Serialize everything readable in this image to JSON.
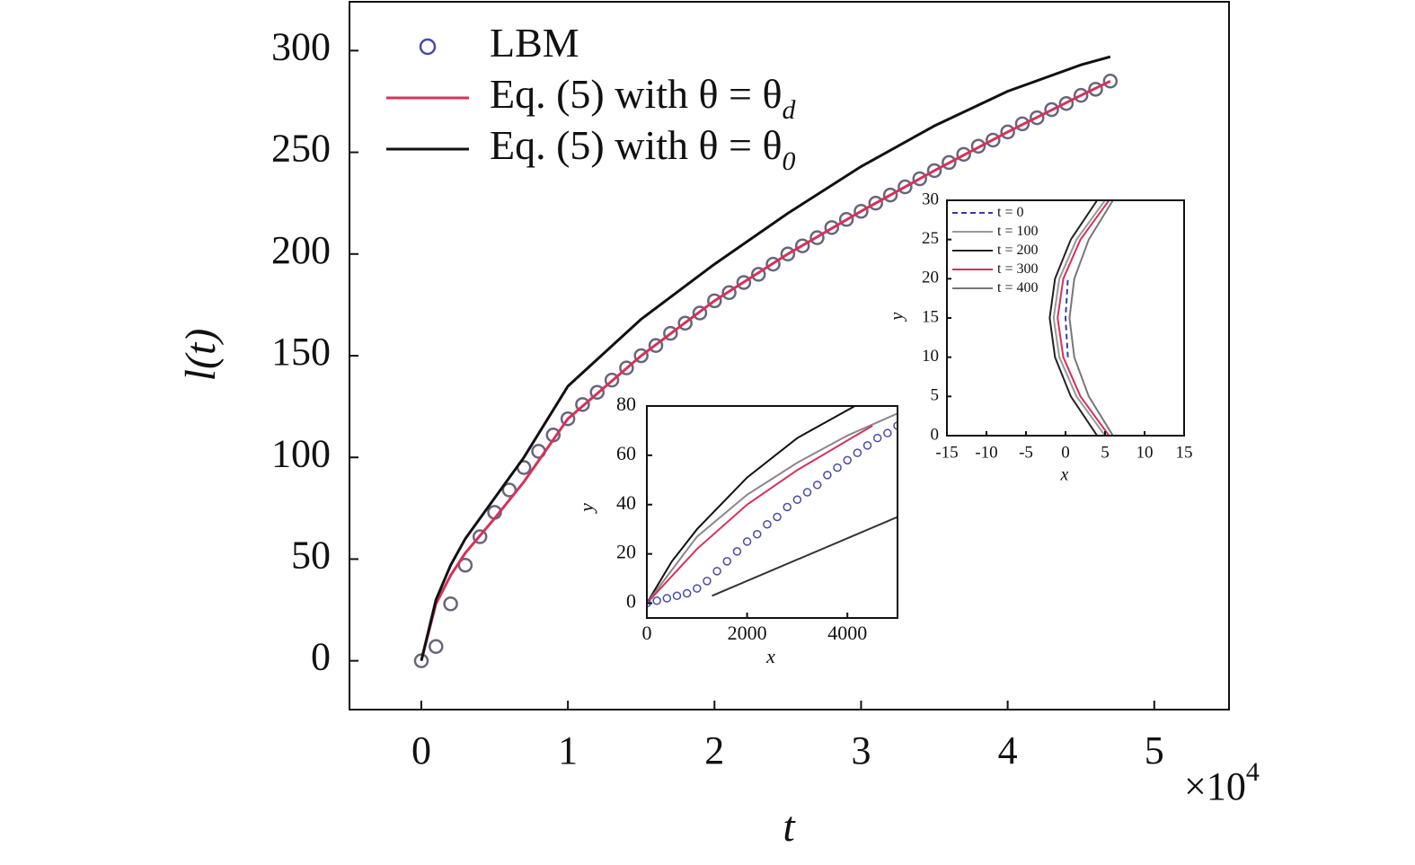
{
  "chart_data": [
    {
      "type": "line",
      "xlabel": "t",
      "ylabel": "l(t)",
      "x_scale_label": "×10",
      "x_scale_exponent": "4",
      "xlim": [
        -0.49,
        5.51
      ],
      "ylim": [
        -24,
        324
      ],
      "xticks": [
        0,
        1,
        2,
        3,
        4,
        5
      ],
      "yticks": [
        0,
        50,
        100,
        150,
        200,
        250,
        300
      ],
      "legend": "upper left",
      "series": [
        {
          "name": "LBM",
          "color": "#66667a",
          "legend_color": "#4a4aa8",
          "marker": "circle",
          "x": [
            0,
            0.1,
            0.2,
            0.3,
            0.4,
            0.5,
            0.6,
            0.7,
            0.8,
            0.9,
            1.0,
            1.1,
            1.2,
            1.3,
            1.4,
            1.5,
            1.6,
            1.7,
            1.8,
            1.9,
            2.0,
            2.1,
            2.2,
            2.3,
            2.4,
            2.5,
            2.6,
            2.7,
            2.8,
            2.9,
            3.0,
            3.1,
            3.2,
            3.3,
            3.4,
            3.5,
            3.6,
            3.7,
            3.8,
            3.9,
            4.0,
            4.1,
            4.2,
            4.3,
            4.4,
            4.5,
            4.6,
            4.7
          ],
          "values": [
            0,
            7,
            28,
            47,
            61,
            73,
            84,
            95,
            103,
            111,
            119,
            126,
            132,
            138,
            144,
            150,
            155,
            161,
            166,
            171,
            177,
            181,
            186,
            190,
            195,
            200,
            204,
            208,
            213,
            217,
            221,
            225,
            229,
            233,
            237,
            241,
            245,
            249,
            253,
            256,
            260,
            264,
            267,
            271,
            274,
            278,
            281,
            285
          ]
        },
        {
          "name": "Eq. (5) with θ = θ",
          "name_sub": "d",
          "color": "#d6315a",
          "x": [
            0,
            0.1,
            0.2,
            0.3,
            0.5,
            0.7,
            1.0,
            1.5,
            2.0,
            2.5,
            3.0,
            3.5,
            4.0,
            4.5,
            4.7
          ],
          "values": [
            0,
            28,
            42,
            53,
            70,
            88,
            119,
            150,
            177,
            200,
            221,
            241,
            260,
            278,
            285
          ]
        },
        {
          "name": "Eq. (5) with θ = θ",
          "name_sub": "0",
          "color": "#111111",
          "x": [
            0,
            0.1,
            0.2,
            0.3,
            0.5,
            0.7,
            1.0,
            1.5,
            2.0,
            2.5,
            3.0,
            3.5,
            4.0,
            4.5,
            4.7
          ],
          "values": [
            0,
            30,
            47,
            60,
            80,
            100,
            135,
            168,
            195,
            220,
            243,
            263,
            280,
            293,
            297
          ]
        }
      ]
    },
    {
      "type": "line",
      "xlabel": "x",
      "ylabel": "y",
      "xlim": [
        0,
        5000
      ],
      "ylim": [
        -6,
        80
      ],
      "xticks": [
        0,
        2000,
        4000
      ],
      "yticks": [
        0,
        20,
        40,
        60,
        80
      ],
      "series": [
        {
          "color": "#111111",
          "x": [
            0,
            500,
            1000,
            2000,
            3000,
            4150
          ],
          "values": [
            0,
            17,
            30,
            51,
            67,
            80
          ]
        },
        {
          "color": "#888888",
          "x": [
            0,
            1000,
            2000,
            3000,
            4000,
            5000
          ],
          "values": [
            0,
            27,
            44,
            57,
            68,
            77
          ]
        },
        {
          "color": "#d6315a",
          "x": [
            0,
            1000,
            2000,
            3000,
            4000,
            4500
          ],
          "values": [
            0,
            22,
            40,
            54,
            66,
            72
          ]
        },
        {
          "color": "#333333",
          "x": [
            1300,
            5000
          ],
          "values": [
            3,
            35
          ]
        },
        {
          "color": "#4a4aa8",
          "marker": "circle",
          "x": [
            0,
            200,
            400,
            600,
            800,
            1000,
            1200,
            1400,
            1600,
            1800,
            2000,
            2200,
            2400,
            2600,
            2800,
            3000,
            3200,
            3400,
            3600,
            3800,
            4000,
            4200,
            4400,
            4600,
            4800,
            5000
          ],
          "values": [
            0,
            1,
            2,
            3,
            4,
            6,
            9,
            13,
            17,
            21,
            25,
            28,
            32,
            35,
            39,
            42,
            45,
            48,
            52,
            55,
            58,
            61,
            64,
            67,
            69,
            72
          ]
        }
      ]
    },
    {
      "type": "line",
      "xlabel": "x",
      "ylabel": "y",
      "xlim": [
        -15,
        15
      ],
      "ylim": [
        0,
        30
      ],
      "xticks": [
        -15,
        -10,
        -5,
        0,
        5,
        10,
        15
      ],
      "yticks": [
        0,
        5,
        10,
        15,
        20,
        25,
        30
      ],
      "legend": "upper left",
      "series": [
        {
          "name": "t = 0",
          "color": "#3a3aa0",
          "dash": true,
          "x": [
            0.3,
            0,
            0.3
          ],
          "values": [
            10,
            15,
            20
          ]
        },
        {
          "name": "t = 100",
          "color": "#999999",
          "x": [
            5,
            1.39,
            -0.78,
            -1.5,
            -0.78,
            1.39,
            5
          ],
          "values": [
            0,
            5,
            10,
            15,
            20,
            25,
            30
          ]
        },
        {
          "name": "t = 200",
          "color": "#222222",
          "x": [
            4,
            0.67,
            -1.33,
            -2,
            -1.33,
            0.67,
            4
          ],
          "values": [
            0,
            5,
            10,
            15,
            20,
            25,
            30
          ]
        },
        {
          "name": "t = 300",
          "color": "#d6315a",
          "x": [
            5.5,
            1.89,
            -0.28,
            -1,
            -0.28,
            1.89,
            5.5
          ],
          "values": [
            0,
            5,
            10,
            15,
            20,
            25,
            30
          ]
        },
        {
          "name": "t = 400",
          "color": "#777777",
          "x": [
            6,
            2.94,
            1.11,
            0.5,
            1.11,
            2.94,
            6
          ],
          "values": [
            0,
            5,
            10,
            15,
            20,
            25,
            30
          ]
        }
      ]
    }
  ]
}
